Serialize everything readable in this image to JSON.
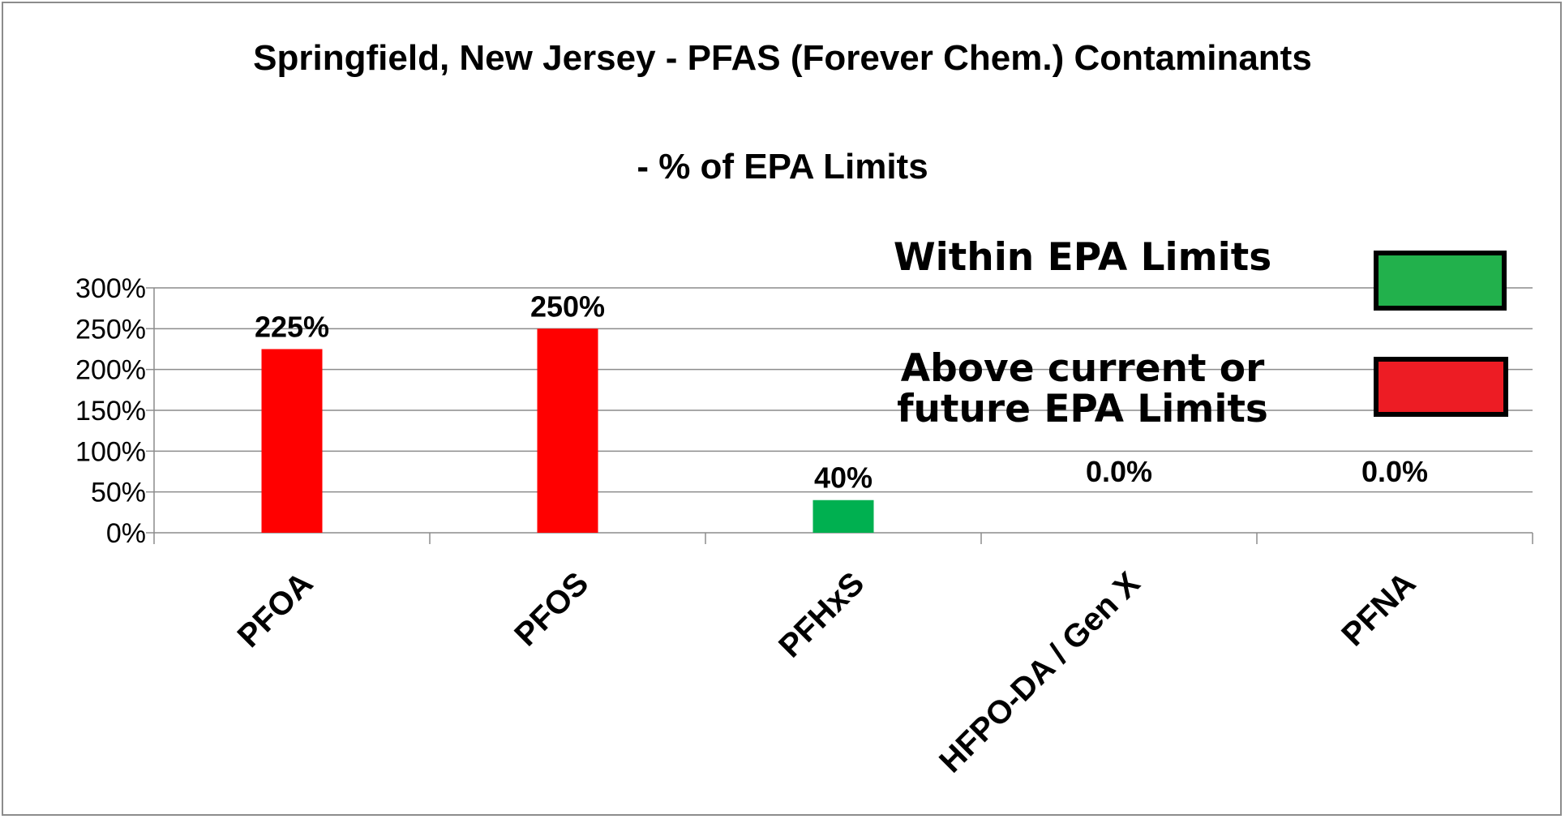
{
  "chart_data": {
    "type": "bar",
    "title": "Springfield, New Jersey - PFAS (Forever Chem.) Contaminants",
    "subtitle": "- % of EPA Limits",
    "categories": [
      "PFOA",
      "PFOS",
      "PFHxS",
      "HFPO-DA / Gen X",
      "PFNA"
    ],
    "values": [
      225,
      250,
      40,
      0,
      0
    ],
    "value_labels": [
      "225%",
      "250%",
      "40%",
      "0.0%",
      "0.0%"
    ],
    "bar_colors": [
      "#ff0000",
      "#ff0000",
      "#00b050",
      "#ff0000",
      "#ff0000"
    ],
    "ylim": [
      0,
      300
    ],
    "yticks": [
      "0%",
      "50%",
      "100%",
      "150%",
      "200%",
      "250%",
      "300%"
    ],
    "grid": true,
    "legend": {
      "placement": "top-right",
      "items": [
        {
          "label_lines": [
            "Within  EPA Limits"
          ],
          "color": "#22b14c"
        },
        {
          "label_lines": [
            "Above current or",
            "future  EPA Limits"
          ],
          "color": "#ed1c24"
        }
      ]
    }
  }
}
